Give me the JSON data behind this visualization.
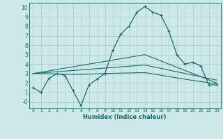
{
  "xlabel": "Humidex (Indice chaleur)",
  "bg_color": "#cce8e8",
  "line_color": "#1a6b6b",
  "grid_color": "#aacece",
  "xlim": [
    -0.5,
    23.5
  ],
  "ylim": [
    -0.7,
    10.5
  ],
  "xticks": [
    0,
    1,
    2,
    3,
    4,
    5,
    6,
    7,
    8,
    9,
    10,
    11,
    12,
    13,
    14,
    15,
    16,
    17,
    18,
    19,
    20,
    21,
    22,
    23
  ],
  "yticks": [
    0,
    1,
    2,
    3,
    4,
    5,
    6,
    7,
    8,
    9,
    10
  ],
  "line1_x": [
    0,
    1,
    2,
    3,
    4,
    5,
    6,
    7,
    8,
    9,
    10,
    11,
    12,
    13,
    14,
    15,
    16,
    17,
    18,
    19,
    20,
    21,
    22,
    23
  ],
  "line1_y": [
    1.5,
    1.0,
    2.5,
    3.0,
    2.8,
    1.2,
    -0.4,
    1.8,
    2.4,
    3.0,
    5.5,
    7.2,
    8.0,
    9.5,
    10.1,
    9.5,
    9.2,
    7.5,
    5.0,
    4.0,
    4.2,
    3.8,
    1.8,
    1.8
  ],
  "line2_x": [
    0,
    6,
    9,
    14,
    19,
    23
  ],
  "line2_y": [
    3.0,
    2.9,
    3.0,
    3.1,
    2.4,
    1.9
  ],
  "line3_x": [
    0,
    14,
    23
  ],
  "line3_y": [
    3.0,
    3.9,
    2.3
  ],
  "line4_x": [
    0,
    14,
    23
  ],
  "line4_y": [
    3.0,
    5.0,
    2.0
  ]
}
